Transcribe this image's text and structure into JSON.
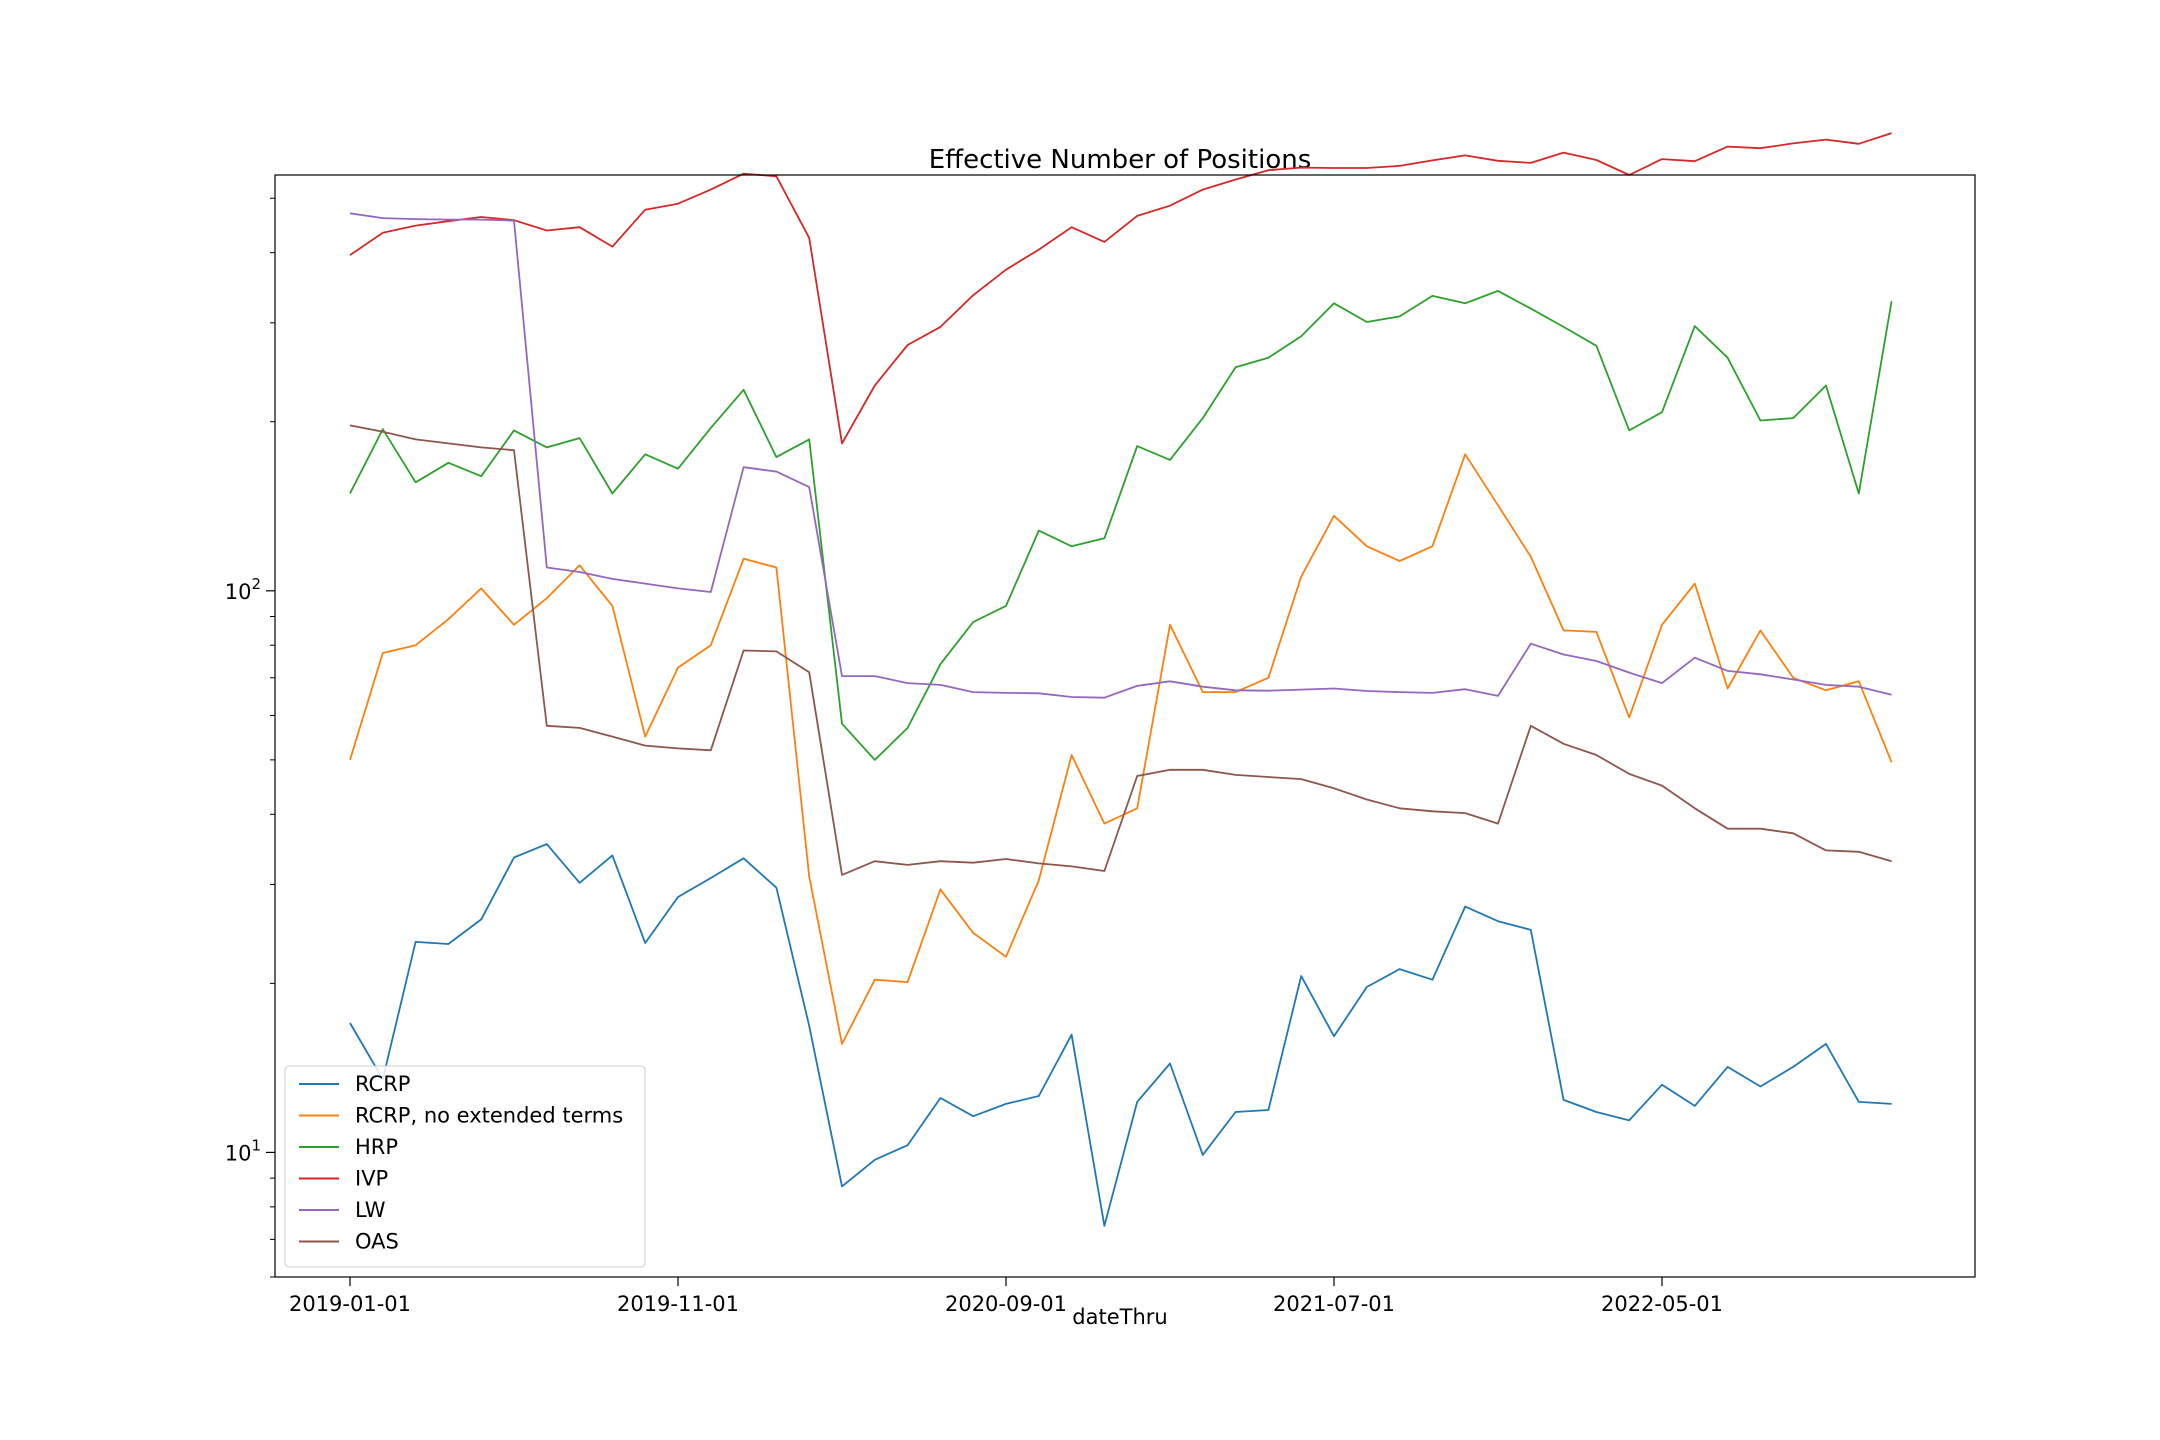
{
  "chart_data": {
    "type": "line",
    "title": "Effective Number of Positions",
    "xlabel": "dateThru",
    "ylabel": "",
    "y_scale": "log",
    "ylim": [
      6,
      550
    ],
    "y_ticks": [
      {
        "value": 10,
        "label": "10^1"
      },
      {
        "value": 100,
        "label": "10^2"
      }
    ],
    "x_start": "2019-01-01",
    "x_step_months": 1,
    "x_ticks": [
      "2019-01-01",
      "2019-11-01",
      "2020-09-01",
      "2021-07-01",
      "2022-05-01"
    ],
    "grid": false,
    "legend_position": "lower-left",
    "series": [
      {
        "name": "RCRP",
        "color": "#1f77b4",
        "values": [
          17,
          13.5,
          23.7,
          23.5,
          26,
          33.5,
          35.4,
          30.2,
          33.8,
          23.6,
          28.5,
          30.8,
          33.4,
          29.6,
          16.8,
          8.7,
          9.7,
          10.3,
          12.5,
          11.6,
          12.2,
          12.6,
          16.2,
          7.4,
          12.3,
          14.4,
          9.9,
          11.8,
          11.9,
          20.6,
          16.1,
          19.7,
          21.2,
          20.3,
          27.4,
          25.8,
          24.9,
          12.4,
          11.8,
          11.4,
          13.2,
          12.1,
          14.2,
          13.1,
          14.2,
          15.6,
          12.3,
          12.2
        ]
      },
      {
        "name": "RCRP, no extended terms",
        "color": "#ff7f0e",
        "values": [
          50,
          77.5,
          80,
          89,
          101,
          87,
          97,
          111,
          94,
          55,
          73,
          80,
          114,
          110,
          31,
          15.6,
          20.3,
          20.1,
          29.4,
          24.6,
          22.3,
          30.5,
          51,
          38.5,
          41,
          87,
          66,
          66,
          70,
          106,
          136,
          120,
          113,
          120,
          175,
          142,
          115,
          85,
          84.5,
          59.5,
          87,
          103,
          67,
          85,
          70,
          66.5,
          69,
          49.5
        ]
      },
      {
        "name": "HRP",
        "color": "#2ca02c",
        "values": [
          149,
          194,
          156,
          169,
          160,
          193,
          180,
          187,
          149,
          175,
          165,
          195,
          228,
          173,
          186,
          58,
          50,
          57,
          74,
          88,
          94,
          128,
          120,
          124,
          181,
          171,
          203,
          250,
          260,
          284,
          325,
          301,
          308,
          335,
          325,
          342,
          318,
          295,
          273,
          193,
          208,
          296,
          260,
          201,
          203,
          232,
          149,
          328
        ]
      },
      {
        "name": "IVP",
        "color": "#d62728",
        "values": [
          396,
          434,
          447,
          455,
          463,
          457,
          438,
          444,
          410,
          477,
          489,
          518,
          553,
          547,
          425,
          183,
          232,
          274,
          295,
          336,
          373,
          405,
          444,
          418,
          465,
          485,
          518,
          540,
          561,
          567,
          566,
          566,
          571,
          584,
          596,
          583,
          578,
          603,
          585,
          550,
          587,
          582,
          618,
          614,
          626,
          636,
          625,
          653
        ]
      },
      {
        "name": "LW",
        "color": "#9467bd",
        "values": [
          470,
          461,
          459,
          458,
          458,
          456,
          110,
          108,
          105,
          103,
          101,
          99.5,
          166,
          163,
          153,
          70.5,
          70.5,
          68.5,
          68,
          66,
          65.8,
          65.7,
          64.7,
          64.5,
          67.7,
          69,
          67.5,
          66.5,
          66.4,
          66.7,
          67,
          66.3,
          66,
          65.8,
          66.8,
          65,
          80.5,
          77,
          75,
          71.5,
          68.5,
          76,
          72,
          71,
          69.5,
          68,
          67.5,
          65.3
        ]
      },
      {
        "name": "OAS",
        "color": "#8c564b",
        "values": [
          197,
          192,
          186,
          183,
          180,
          178,
          57.5,
          57,
          55,
          53,
          52.4,
          52,
          78.3,
          78,
          71.6,
          31.2,
          33,
          32.5,
          33,
          32.8,
          33.3,
          32.7,
          32.3,
          31.7,
          46.8,
          48,
          48,
          47,
          46.6,
          46.2,
          44.5,
          42.5,
          41,
          40.5,
          40.2,
          38.5,
          57.5,
          53.4,
          51,
          47.2,
          45,
          41,
          37.7,
          37.7,
          37,
          34.5,
          34.3,
          33
        ]
      }
    ]
  }
}
